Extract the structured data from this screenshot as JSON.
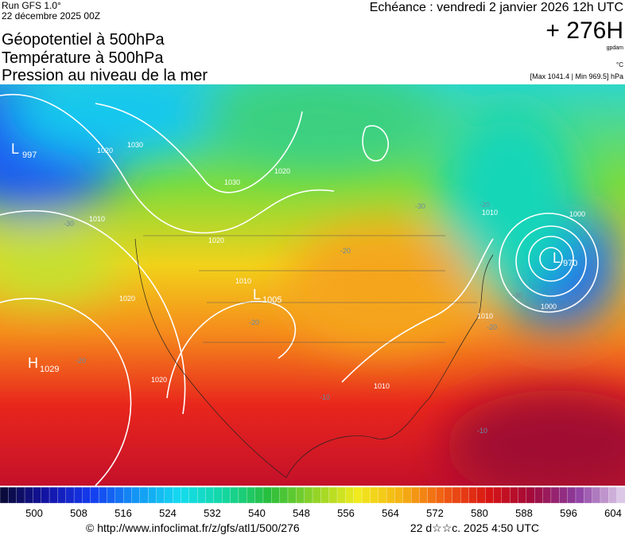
{
  "header": {
    "run": "Run GFS 1.0°",
    "date": "22 décembre 2025 00Z",
    "titles": [
      "Géopotentiel à 500hPa",
      "Température à 500hPa",
      "Pression au niveau de la mer"
    ],
    "forecast": "Echéance : vendredi 2 janvier 2026 12h UTC",
    "lead": "+ 276H",
    "unit_geo": "gpdam",
    "unit_temp": "°C",
    "extremes": "[Max 1041.4 | Min 969.5] hPa"
  },
  "map": {
    "centers": [
      {
        "letter": "L",
        "value": "997"
      },
      {
        "letter": "H",
        "value": "1029"
      },
      {
        "letter": "L",
        "value": "1005"
      },
      {
        "letter": "L",
        "value": "970"
      }
    ],
    "isobar_labels": [
      "1020",
      "1030",
      "1010",
      "1020",
      "1020",
      "1030",
      "1010",
      "1020",
      "1010",
      "1000",
      "1010",
      "1000",
      "1010",
      "1020"
    ],
    "temp_labels": [
      "-30",
      "-30",
      "-20",
      "-30",
      "-20",
      "-20",
      "-20",
      "-10",
      "-20",
      "-10"
    ]
  },
  "colorbar": {
    "labels": [
      "500",
      "508",
      "516",
      "524",
      "532",
      "540",
      "548",
      "556",
      "564",
      "572",
      "580",
      "588",
      "596",
      "604"
    ]
  },
  "footer": {
    "url": "© http://www.infoclimat.fr/z/gfs/atl1/500/276",
    "time": "22 d☆☆c. 2025  4:50 UTC"
  }
}
